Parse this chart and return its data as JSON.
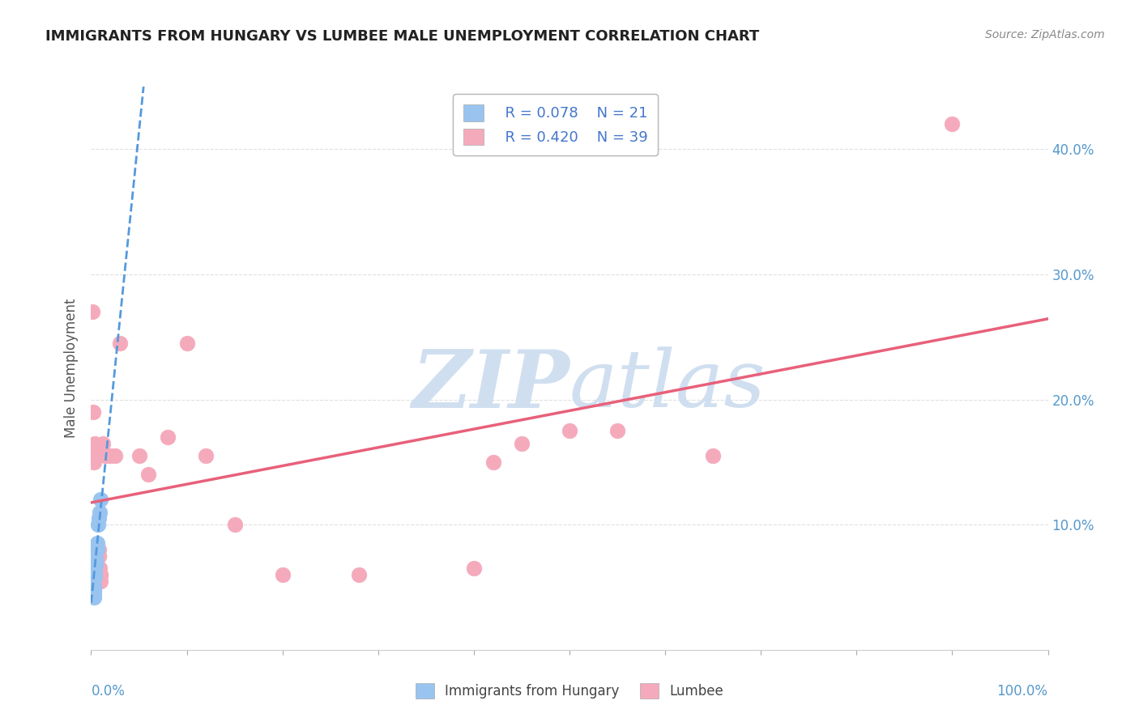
{
  "title": "IMMIGRANTS FROM HUNGARY VS LUMBEE MALE UNEMPLOYMENT CORRELATION CHART",
  "source": "Source: ZipAtlas.com",
  "ylabel": "Male Unemployment",
  "xlim": [
    0,
    1.0
  ],
  "ylim": [
    0,
    0.45
  ],
  "yticks": [
    0.1,
    0.2,
    0.3,
    0.4
  ],
  "ytick_labels": [
    "10.0%",
    "20.0%",
    "30.0%",
    "40.0%"
  ],
  "blue_legend_R": "R = 0.078",
  "blue_legend_N": "N = 21",
  "pink_legend_R": "R = 0.420",
  "pink_legend_N": "N = 39",
  "blue_scatter_x": [
    0.001,
    0.001,
    0.002,
    0.002,
    0.002,
    0.003,
    0.003,
    0.003,
    0.003,
    0.004,
    0.004,
    0.004,
    0.005,
    0.005,
    0.005,
    0.006,
    0.006,
    0.007,
    0.008,
    0.009,
    0.01
  ],
  "blue_scatter_y": [
    0.075,
    0.065,
    0.06,
    0.055,
    0.05,
    0.05,
    0.048,
    0.045,
    0.042,
    0.058,
    0.062,
    0.068,
    0.07,
    0.072,
    0.068,
    0.08,
    0.085,
    0.1,
    0.105,
    0.11,
    0.12
  ],
  "pink_scatter_x": [
    0.001,
    0.002,
    0.002,
    0.003,
    0.003,
    0.004,
    0.004,
    0.005,
    0.005,
    0.006,
    0.007,
    0.007,
    0.008,
    0.008,
    0.008,
    0.009,
    0.01,
    0.01,
    0.01,
    0.012,
    0.015,
    0.02,
    0.025,
    0.03,
    0.05,
    0.06,
    0.08,
    0.1,
    0.12,
    0.15,
    0.2,
    0.28,
    0.4,
    0.42,
    0.45,
    0.5,
    0.55,
    0.65,
    0.9
  ],
  "pink_scatter_y": [
    0.27,
    0.16,
    0.19,
    0.15,
    0.155,
    0.155,
    0.165,
    0.06,
    0.065,
    0.075,
    0.08,
    0.08,
    0.075,
    0.075,
    0.08,
    0.065,
    0.06,
    0.055,
    0.06,
    0.165,
    0.155,
    0.155,
    0.155,
    0.245,
    0.155,
    0.14,
    0.17,
    0.245,
    0.155,
    0.1,
    0.06,
    0.06,
    0.065,
    0.15,
    0.165,
    0.175,
    0.175,
    0.155,
    0.42
  ],
  "blue_color": "#99c4f0",
  "pink_color": "#f5aabc",
  "blue_line_color": "#5599dd",
  "pink_line_color": "#e8607a",
  "watermark_color": "#d0dff0",
  "background_color": "#ffffff",
  "grid_color": "#e0e0e0"
}
